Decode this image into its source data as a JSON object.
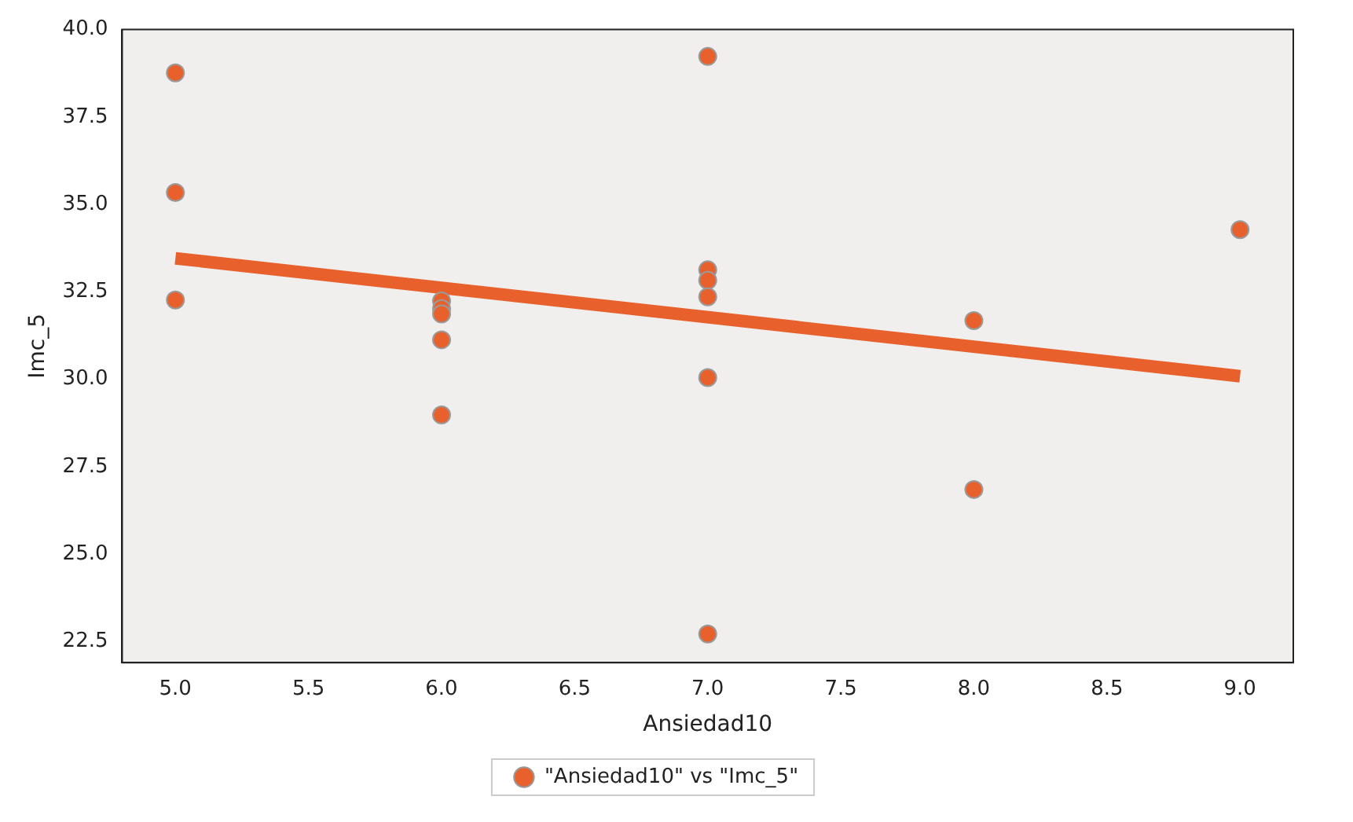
{
  "chart_data": {
    "type": "scatter",
    "xlabel": "Ansiedad10",
    "ylabel": "Imc_5",
    "series": [
      {
        "name": "\"Ansiedad10\" vs \"Imc_5\"",
        "marker": "circle",
        "color": "#e8612c",
        "x": [
          5,
          5,
          5,
          6,
          6,
          6,
          6,
          6,
          7,
          7,
          7,
          7,
          7,
          7,
          8,
          8,
          9
        ],
        "values": [
          38.76,
          35.34,
          32.27,
          32.24,
          32.02,
          31.87,
          31.13,
          28.98,
          39.23,
          33.13,
          32.83,
          32.36,
          30.05,
          22.72,
          31.68,
          26.85,
          34.28
        ]
      },
      {
        "type": "line",
        "color": "#e8612c",
        "x": [
          5,
          9
        ],
        "values": [
          33.46,
          30.09
        ]
      }
    ],
    "xlim": [
      4.8,
      9.2
    ],
    "ylim": [
      21.9,
      40.0
    ],
    "xticks": [
      {
        "value": 5,
        "label": "5.0"
      },
      {
        "value": 5.5,
        "label": "5.5"
      },
      {
        "value": 6,
        "label": "6.0"
      },
      {
        "value": 6.5,
        "label": "6.5"
      },
      {
        "value": 7,
        "label": "7.0"
      },
      {
        "value": 7.5,
        "label": "7.5"
      },
      {
        "value": 8,
        "label": "8.0"
      },
      {
        "value": 8.5,
        "label": "8.5"
      },
      {
        "value": 9,
        "label": "9.0"
      }
    ],
    "yticks": [
      {
        "value": 22.5,
        "label": "22.5"
      },
      {
        "value": 25,
        "label": "25.0"
      },
      {
        "value": 27.5,
        "label": "27.5"
      },
      {
        "value": 30,
        "label": "30.0"
      },
      {
        "value": 32.5,
        "label": "32.5"
      },
      {
        "value": 35,
        "label": "35.0"
      },
      {
        "value": 37.5,
        "label": "37.5"
      },
      {
        "value": 40,
        "label": "40.0"
      }
    ],
    "grid": false,
    "legend": "bottom"
  }
}
